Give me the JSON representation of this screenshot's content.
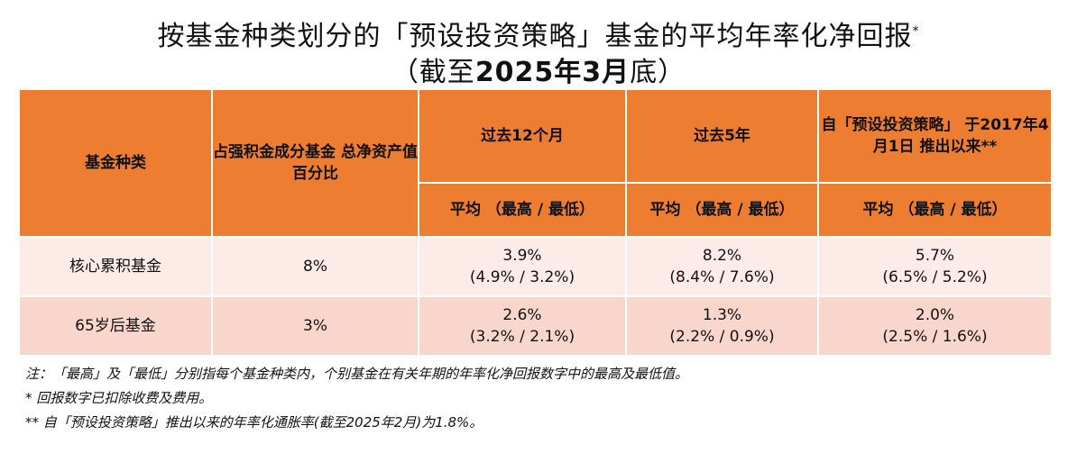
{
  "title": {
    "line1": "按基金种类划分的「预设投资策略」基金的平均年率化净回报",
    "marker": "*",
    "line2_open": "（截至",
    "line2_bold": "2025年3月",
    "line2_close": "底）"
  },
  "table": {
    "headers": {
      "fund_type": "基金种类",
      "percent_line1": "占强积金成分基金",
      "percent_line2": "总净资产值百分比",
      "past12": "过去12个月",
      "past5": "过去5年",
      "since_line1": "自「预设投资策略」",
      "since_line2": "于2017年4月1日",
      "since_line3": "推出以来**",
      "avg": "平均",
      "maxmin": "（最高 / 最低）"
    },
    "rows": [
      {
        "fund": "核心累积基金",
        "percent": "8%",
        "y12_avg": "3.9%",
        "y12_range": "(4.9% / 3.2%)",
        "y5_avg": "8.2%",
        "y5_range": "(8.4% / 7.6%)",
        "since_avg": "5.7%",
        "since_range": "(6.5% / 5.2%)"
      },
      {
        "fund": "65岁后基金",
        "percent": "3%",
        "y12_avg": "2.6%",
        "y12_range": "(3.2% / 2.1%)",
        "y5_avg": "1.3%",
        "y5_range": "(2.2% / 0.9%)",
        "since_avg": "2.0%",
        "since_range": "(2.5% / 1.6%)"
      }
    ]
  },
  "notes": [
    "注：「最高」及「最低」分别指每个基金种类内，个别基金在有关年期的年率化净回报数字中的最高及最低值。",
    "*    回报数字已扣除收费及费用。",
    "**  自「预设投资策略」推出以来的年率化通胀率(截至2025年2月)为1.8%。"
  ],
  "colors": {
    "header": "#ed7d31",
    "row1": "#fcebe6",
    "row2": "#f8d6cc"
  }
}
